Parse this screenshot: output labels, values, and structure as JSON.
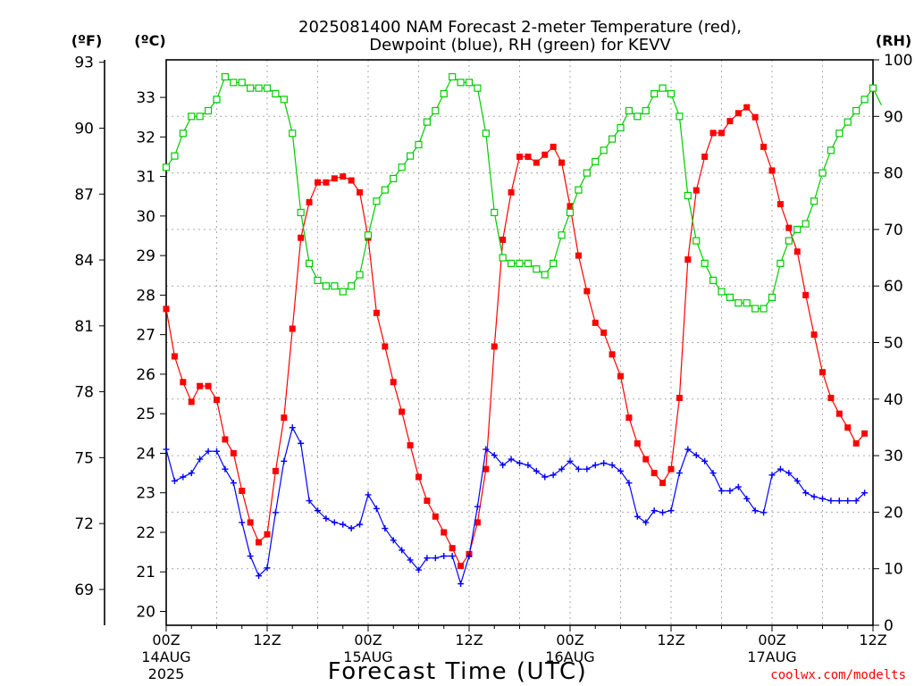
{
  "chart_data": {
    "type": "line",
    "title": "2025081400 NAM Forecast 2-meter Temperature (red),",
    "subtitle": "Dewpoint (blue), RH (green) for KEVV",
    "xlabel": "Forecast Time (UTC)",
    "credit": "coolwx.com/modelts",
    "left_outer_unit": "(ºF)",
    "left_inner_unit": "(ºC)",
    "right_unit": "(RH)",
    "x_tick_labels": [
      {
        "h": 0,
        "lines": [
          "00Z",
          "14AUG",
          "2025"
        ]
      },
      {
        "h": 12,
        "lines": [
          "12Z"
        ]
      },
      {
        "h": 24,
        "lines": [
          "00Z",
          "15AUG"
        ]
      },
      {
        "h": 36,
        "lines": [
          "12Z"
        ]
      },
      {
        "h": 48,
        "lines": [
          "00Z",
          "16AUG"
        ]
      },
      {
        "h": 60,
        "lines": [
          "12Z"
        ]
      },
      {
        "h": 72,
        "lines": [
          "00Z",
          "17AUG"
        ]
      },
      {
        "h": 84,
        "lines": [
          "12Z"
        ]
      }
    ],
    "xlim": [
      0,
      84
    ],
    "ylim_c": [
      19.65,
      33.95
    ],
    "ylim_rh": [
      0,
      100
    ],
    "c_ticks": [
      20,
      21,
      22,
      23,
      24,
      25,
      26,
      27,
      28,
      29,
      30,
      31,
      32,
      33
    ],
    "f_ticks": [
      69,
      72,
      75,
      78,
      81,
      84,
      87,
      90,
      93
    ],
    "rh_ticks": [
      0,
      10,
      20,
      30,
      40,
      50,
      60,
      70,
      80,
      90,
      100
    ],
    "grid": true,
    "colors": {
      "temperature": "#ff0000",
      "dewpoint": "#0000ff",
      "rh": "#00cc00",
      "grid": "#aaaaaa",
      "credit": "#ff0000"
    },
    "series": [
      {
        "name": "2-meter Temperature",
        "axis": "C",
        "values": [
          27.65,
          26.45,
          25.8,
          25.3,
          25.7,
          25.7,
          25.35,
          24.35,
          24.0,
          23.05,
          22.25,
          21.75,
          21.95,
          23.55,
          24.9,
          27.15,
          29.45,
          30.35,
          30.85,
          30.85,
          30.95,
          31.0,
          30.9,
          30.6,
          29.45,
          27.55,
          26.7,
          25.8,
          25.05,
          24.2,
          23.4,
          22.8,
          22.4,
          22.0,
          21.6,
          21.15,
          21.45,
          22.25,
          23.6,
          26.7,
          29.4,
          30.6,
          31.5,
          31.5,
          31.35,
          31.55,
          31.75,
          31.35,
          30.25,
          29.0,
          28.1,
          27.3,
          27.05,
          26.5,
          25.95,
          24.9,
          24.25,
          23.85,
          23.5,
          23.25,
          23.6,
          25.4,
          28.9,
          30.65,
          31.5,
          32.1,
          32.1,
          32.4,
          32.6,
          32.75,
          32.5,
          31.75,
          31.15,
          30.3,
          29.7,
          29.1,
          28.0,
          27.0,
          26.05,
          25.4,
          25.0,
          24.65,
          24.25,
          24.5
        ]
      },
      {
        "name": "Dewpoint",
        "axis": "C",
        "values": [
          24.1,
          23.3,
          23.4,
          23.5,
          23.85,
          24.05,
          24.05,
          23.6,
          23.25,
          22.25,
          21.4,
          20.9,
          21.1,
          22.5,
          23.8,
          24.65,
          24.25,
          22.8,
          22.55,
          22.35,
          22.25,
          22.2,
          22.1,
          22.2,
          22.95,
          22.6,
          22.1,
          21.8,
          21.55,
          21.3,
          21.05,
          21.35,
          21.35,
          21.4,
          21.4,
          20.7,
          21.4,
          22.65,
          24.1,
          23.95,
          23.7,
          23.85,
          23.75,
          23.7,
          23.55,
          23.4,
          23.45,
          23.6,
          23.8,
          23.6,
          23.6,
          23.7,
          23.75,
          23.7,
          23.55,
          23.25,
          22.4,
          22.25,
          22.55,
          22.5,
          22.55,
          23.5,
          24.1,
          23.95,
          23.8,
          23.5,
          23.05,
          23.05,
          23.15,
          22.85,
          22.55,
          22.5,
          23.45,
          23.6,
          23.5,
          23.3,
          23.0,
          22.9,
          22.85,
          22.8,
          22.8,
          22.8,
          22.8,
          23.0
        ]
      },
      {
        "name": "RH",
        "axis": "RH",
        "values": [
          81,
          83,
          87,
          90,
          90,
          91,
          93,
          97,
          96,
          96,
          95,
          95,
          95,
          94,
          93,
          87,
          73,
          64,
          61,
          60,
          60,
          59,
          60,
          62,
          69,
          75,
          77,
          79,
          81,
          83,
          85,
          89,
          91,
          94,
          97,
          96,
          96,
          95,
          87,
          73,
          65,
          64,
          64,
          64,
          63,
          62,
          64,
          69,
          73,
          77,
          80,
          82,
          84,
          86,
          88,
          91,
          90,
          91,
          94,
          95,
          94,
          90,
          76,
          68,
          64,
          61,
          59,
          58,
          57,
          57,
          56,
          56,
          58,
          64,
          68,
          70,
          71,
          75,
          80,
          84,
          87,
          89,
          91,
          93,
          95,
          92
        ]
      }
    ]
  }
}
